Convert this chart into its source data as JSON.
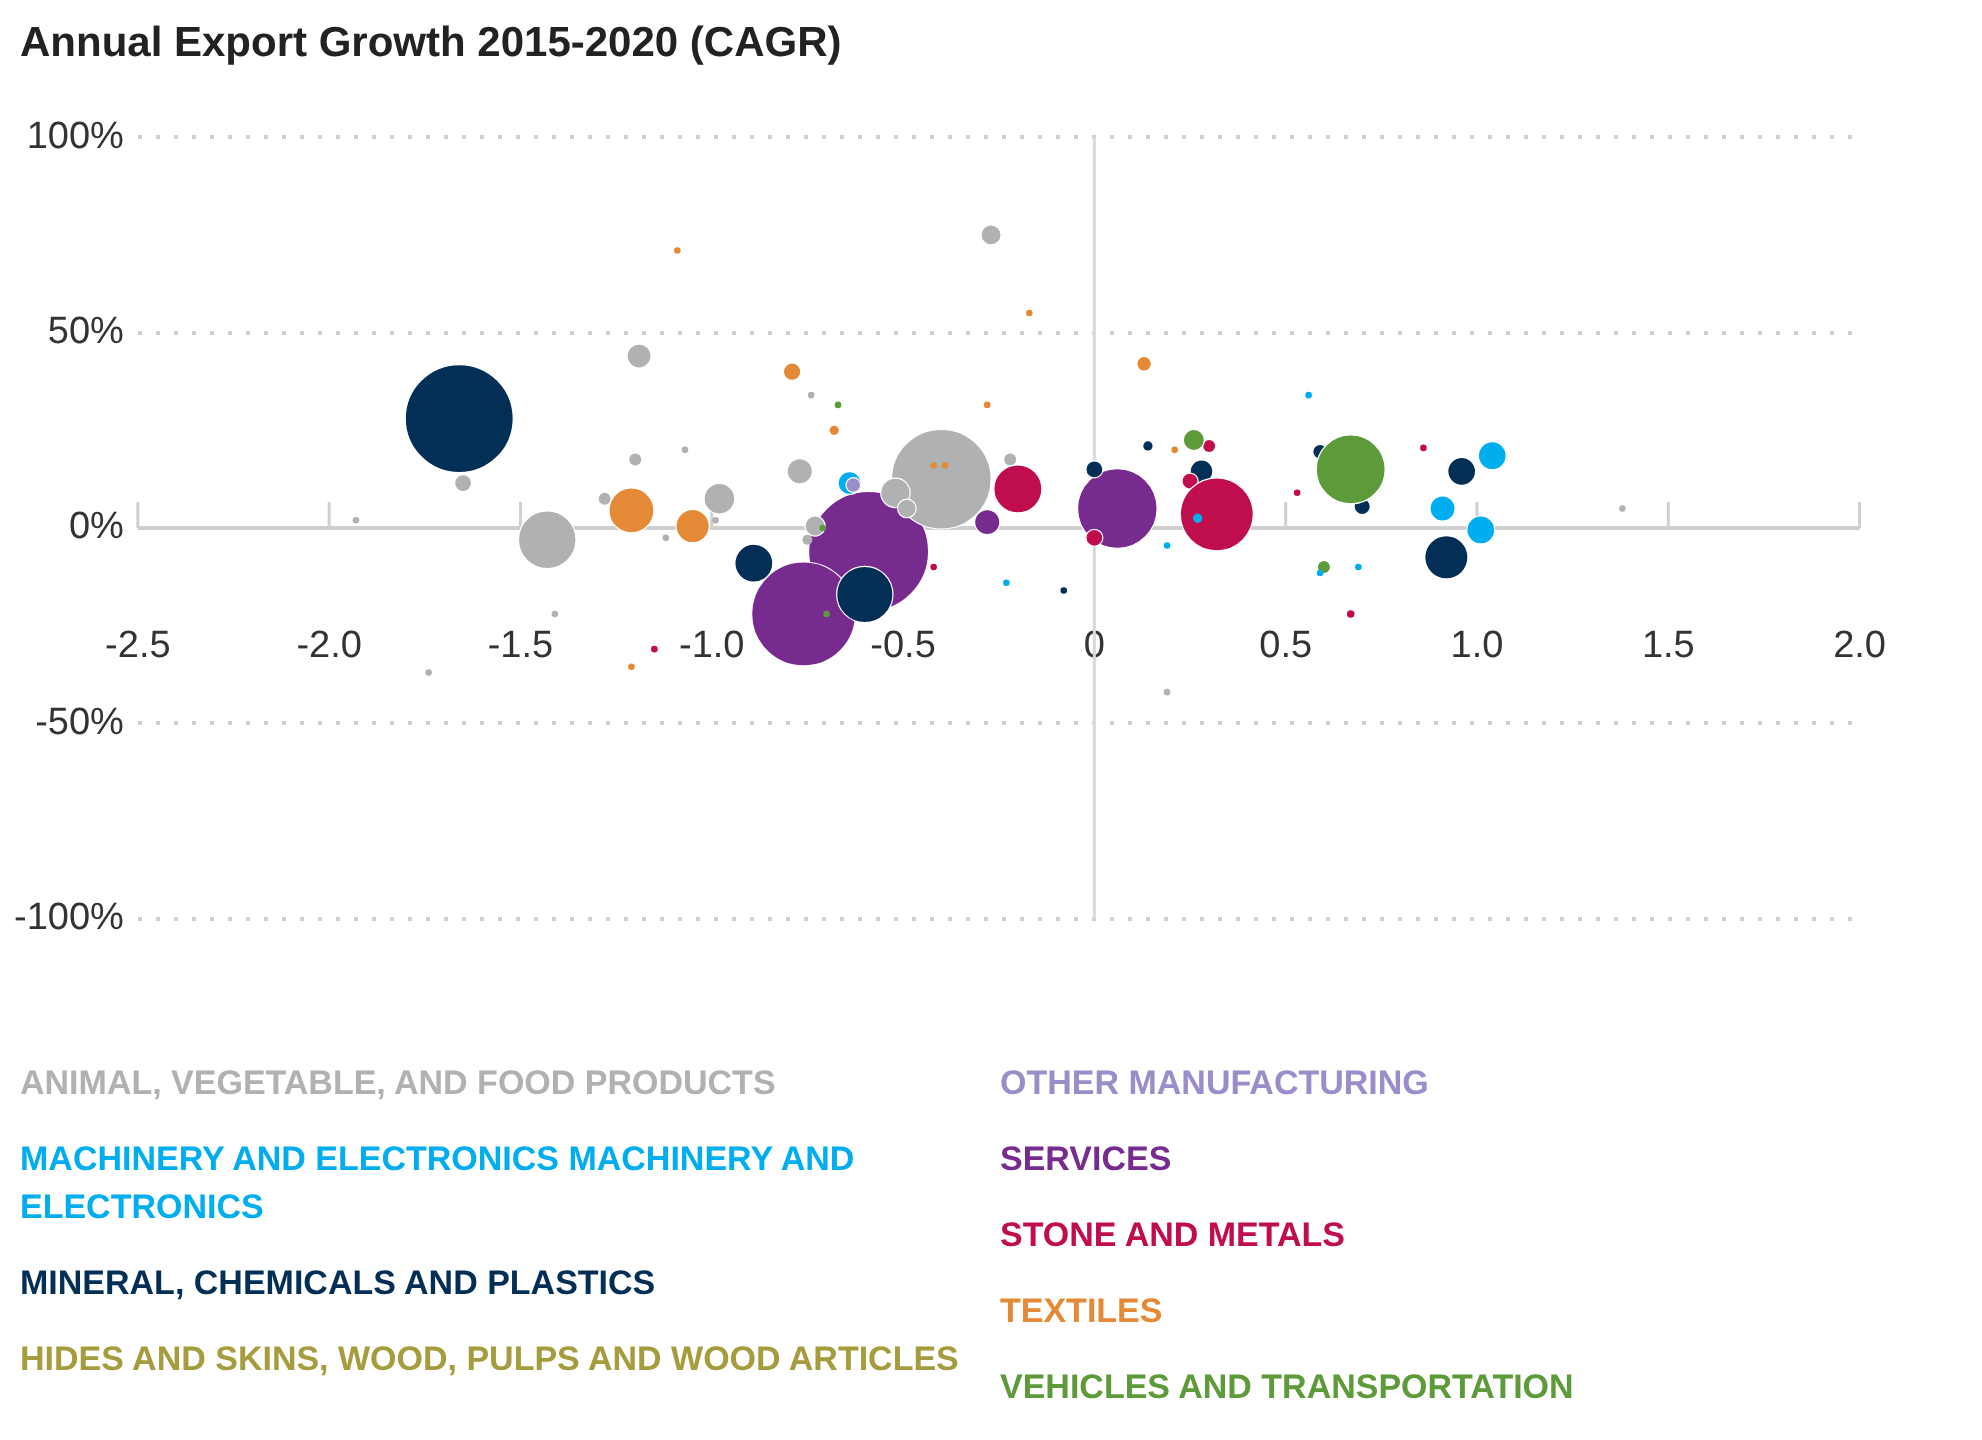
{
  "chart_data": {
    "type": "bubble",
    "title": "Annual Export Growth 2015-2020 (CAGR)",
    "xlim": [
      -2.5,
      2.0
    ],
    "xticks": [
      -2.5,
      {
        "value": -2,
        "label": "-2.0"
      },
      -1.5,
      {
        "value": -1,
        "label": "-1.0"
      },
      -0.5,
      0,
      0.5,
      {
        "value": 1,
        "label": "1.0"
      },
      1.5,
      {
        "value": 2,
        "label": "2.0"
      }
    ],
    "ylim": [
      -100,
      100
    ],
    "yticks": [
      {
        "value": -100,
        "label": "-100%"
      },
      {
        "value": -50,
        "label": "-50%"
      },
      {
        "value": 0,
        "label": "0%"
      },
      {
        "value": 50,
        "label": "50%"
      },
      {
        "value": 100,
        "label": "100%"
      }
    ],
    "grid": "y",
    "legend": "bottom",
    "ref_lines": [
      {
        "axis": "x",
        "value": 0,
        "color": "#d9d9d9"
      }
    ],
    "series": [
      {
        "name": "ANIMAL, VEGETABLE, AND FOOD PRODUCTS",
        "color": "#b0b1b3",
        "x": [
          -1.65,
          -1.43,
          -1.28,
          -1.93,
          -1.41,
          -1.74,
          -1.19,
          -0.27,
          -0.74,
          -1.2,
          -1.07,
          -0.98,
          -1.12,
          -0.99,
          -0.77,
          -0.73,
          -0.75,
          -0.4,
          -0.52,
          -0.49,
          -0.22,
          1.38,
          0.19
        ],
        "values": [
          11.5,
          -3,
          7.5,
          2,
          -22,
          -37,
          44,
          75,
          34,
          17.5,
          20,
          7.5,
          -2.5,
          2,
          14.5,
          0.5,
          -3,
          12.5,
          9,
          5,
          17.5,
          5,
          -42
        ],
        "sizes": [
          0.02,
          0.23,
          0.012,
          0.003,
          0.003,
          0.003,
          0.04,
          0.028,
          0.003,
          0.01,
          0.003,
          0.065,
          0.003,
          0.003,
          0.044,
          0.028,
          0.007,
          0.69,
          0.06,
          0.024,
          0.01,
          0.003,
          0.003
        ]
      },
      {
        "name": "MACHINERY AND ELECTRONICS MACHINERY AND ELECTRONICS",
        "color": "#00aeef",
        "x": [
          -0.64,
          0.56,
          0.27,
          0.19,
          0.69,
          0.59,
          -0.23,
          1.04,
          0.91,
          1.01
        ],
        "values": [
          11.5,
          34,
          2.5,
          -4.5,
          -10,
          -11.5,
          -14,
          18.5,
          5,
          -0.5
        ],
        "sizes": [
          0.036,
          0.003,
          0.006,
          0.003,
          0.003,
          0.003,
          0.003,
          0.054,
          0.044,
          0.054
        ]
      },
      {
        "name": "MINERAL, CHEMICALS AND PLASTICS",
        "color": "#032e56",
        "x": [
          -1.66,
          -0.6,
          -0.89,
          -0.08,
          0.14,
          0.28,
          0.0,
          0.59,
          0.7,
          0.96,
          0.92
        ],
        "values": [
          28,
          -17,
          -9,
          -16,
          21,
          14.5,
          15,
          19.5,
          5.5,
          14.5,
          -7.5
        ],
        "sizes": [
          0.81,
          0.22,
          0.1,
          0.003,
          0.006,
          0.036,
          0.02,
          0.015,
          0.018,
          0.054,
          0.13
        ]
      },
      {
        "name": "HIDES AND SKINS, WOOD, PULPS AND WOOD ARTICLES",
        "color": "#a59c3d"
      },
      {
        "name": "OTHER MANUFACTURING",
        "color": "#9b8dc9",
        "x": [
          -0.63
        ],
        "values": [
          11
        ],
        "sizes": [
          0.015
        ]
      },
      {
        "name": "SERVICES",
        "color": "#772b8f",
        "x": [
          -0.59,
          -0.76,
          -0.28,
          0.06
        ],
        "values": [
          -6,
          -22,
          1.5,
          5
        ],
        "sizes": [
          1,
          0.75,
          0.044,
          0.44
        ]
      },
      {
        "name": "STONE AND METALS",
        "color": "#bf0d4e",
        "x": [
          -1.15,
          -0.2,
          0.3,
          0.25,
          0.0,
          0.32,
          0.53,
          0.86,
          0.67,
          -0.42
        ],
        "values": [
          -31,
          10,
          21,
          12,
          -2.5,
          3.5,
          9,
          20.5,
          -22,
          -10
        ],
        "sizes": [
          0.003,
          0.16,
          0.01,
          0.018,
          0.02,
          0.37,
          0.003,
          0.003,
          0.004,
          0.003
        ]
      },
      {
        "name": "TEXTILES",
        "color": "#e48a36",
        "x": [
          -1.21,
          -1.09,
          -0.17,
          -0.79,
          -0.68,
          -0.28,
          -1.21,
          -1.05,
          -0.42,
          -0.39,
          0.13,
          0.21
        ],
        "values": [
          -35.5,
          71,
          55,
          40,
          25,
          31.5,
          4.5,
          0.5,
          16,
          16,
          42,
          20
        ],
        "sizes": [
          0.003,
          0.003,
          0.003,
          0.021,
          0.006,
          0.003,
          0.14,
          0.077,
          0.003,
          0.003,
          0.015,
          0.003
        ]
      },
      {
        "name": "VEHICLES AND TRANSPORTATION",
        "color": "#5c9a3a",
        "x": [
          -0.67,
          -0.7,
          0.26,
          0.67,
          0.6,
          -0.71
        ],
        "values": [
          31.5,
          -22,
          22.5,
          15,
          -10,
          0
        ],
        "sizes": [
          0.003,
          0.003,
          0.031,
          0.33,
          0.01,
          0.003
        ]
      }
    ]
  }
}
